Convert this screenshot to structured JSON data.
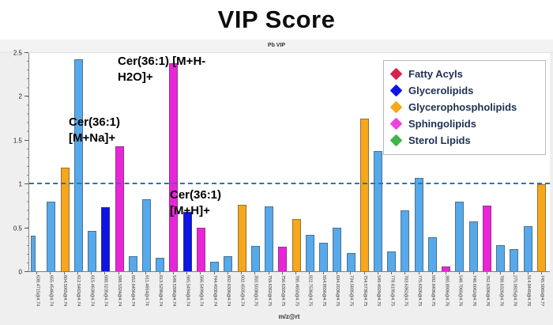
{
  "title": "VIP Score",
  "panel_header": "Pb VIP",
  "legend": {
    "items": [
      {
        "label": "Fatty Acyls",
        "color": "#d6224c"
      },
      {
        "label": "Glycerolipids",
        "color": "#0d14e4"
      },
      {
        "label": "Glycerophospholipids",
        "color": "#f6a71c"
      },
      {
        "label": "Sphingolipids",
        "color": "#ef42e0"
      },
      {
        "label": "Sterol Lipids",
        "color": "#3cb54a"
      }
    ]
  },
  "chart_data": {
    "type": "bar",
    "title": "Pb VIP",
    "xlabel": "m/z@rt",
    "ylabel": "",
    "ylim": [
      0,
      2.5
    ],
    "yticks": [
      "0",
      "0.5",
      "1",
      "1.5",
      "2",
      "2.5"
    ],
    "grid": false,
    "legend_position": "top-right",
    "threshold_line": {
      "value": 1.0,
      "style": "dashed",
      "color": "#2d74a4"
    },
    "category_colors": {
      "other": "#56a9ea",
      "fatty_acyls": "#d6224c",
      "glycerolipids": "#0d14e4",
      "glycerophospholipids": "#f6a71c",
      "sphingolipids": "#ea25d8",
      "sterol_lipids": "#3cb54a"
    },
    "bars": [
      {
        "label": "638.4715@4.74",
        "value": 0.41,
        "category": "other"
      },
      {
        "label": "655.4546@4.74",
        "value": 0.8,
        "category": "other"
      },
      {
        "label": "604.5065@4.74",
        "value": 1.19,
        "category": "glycerophospholipids"
      },
      {
        "label": "612.5463@4.74",
        "value": 2.43,
        "category": "other"
      },
      {
        "label": "615.4638@4.74",
        "value": 0.46,
        "category": "other"
      },
      {
        "label": "688.5235@4.74",
        "value": 0.73,
        "category": "glycerolipids"
      },
      {
        "label": "588.5324@4.74",
        "value": 1.43,
        "category": "sphingolipids"
      },
      {
        "label": "652.6456@4.74",
        "value": 0.17,
        "category": "other"
      },
      {
        "label": "611.4654@4.74",
        "value": 0.82,
        "category": "other"
      },
      {
        "label": "613.5296@4.74",
        "value": 0.15,
        "category": "other"
      },
      {
        "label": "548.5396@4.74",
        "value": 2.38,
        "category": "sphingolipids"
      },
      {
        "label": "565.5494@4.74",
        "value": 0.68,
        "category": "glycerolipids"
      },
      {
        "label": "566.5499@4.74",
        "value": 0.5,
        "category": "sphingolipids"
      },
      {
        "label": "744.4930@4.74",
        "value": 0.11,
        "category": "other"
      },
      {
        "label": "802.6306@4.74",
        "value": 0.17,
        "category": "other"
      },
      {
        "label": "602.4505@4.74",
        "value": 0.76,
        "category": "glycerophospholipids"
      },
      {
        "label": "350.5038@4.75",
        "value": 0.29,
        "category": "other"
      },
      {
        "label": "759.6362@4.75",
        "value": 0.74,
        "category": "other"
      },
      {
        "label": "756.6305@4.75",
        "value": 0.28,
        "category": "sphingolipids"
      },
      {
        "label": "780.4650@4.75",
        "value": 0.6,
        "category": "glycerophospholipids"
      },
      {
        "label": "822.7536@4.75",
        "value": 0.42,
        "category": "other"
      },
      {
        "label": "554.8556@4.75",
        "value": 0.33,
        "category": "other"
      },
      {
        "label": "694.2036@4.75",
        "value": 0.5,
        "category": "other"
      },
      {
        "label": "734.5695@4.75",
        "value": 0.21,
        "category": "other"
      },
      {
        "label": "754.5736@4.75",
        "value": 1.75,
        "category": "glycerophospholipids"
      },
      {
        "label": "549.4929@4.75",
        "value": 1.38,
        "category": "other"
      },
      {
        "label": "778.6195@4.75",
        "value": 0.23,
        "category": "other"
      },
      {
        "label": "783.6362@4.75",
        "value": 0.7,
        "category": "other"
      },
      {
        "label": "775.6326@4.75",
        "value": 1.07,
        "category": "other"
      },
      {
        "label": "592.8406@4.75",
        "value": 0.39,
        "category": "other"
      },
      {
        "label": "380.8906@4.76",
        "value": 0.05,
        "category": "sphingolipids"
      },
      {
        "label": "548.7060@4.76",
        "value": 0.8,
        "category": "other"
      },
      {
        "label": "746.6062@4.76",
        "value": 0.57,
        "category": "other"
      },
      {
        "label": "762.6306@4.76",
        "value": 0.75,
        "category": "sphingolipids"
      },
      {
        "label": "788.6326@4.76",
        "value": 0.3,
        "category": "other"
      },
      {
        "label": "275.0925@4.76",
        "value": 0.25,
        "category": "other"
      },
      {
        "label": "514.8440@4.76",
        "value": 0.52,
        "category": "other"
      },
      {
        "label": "745.5060@4.77",
        "value": 1.0,
        "category": "glycerophospholipids"
      }
    ],
    "annotations": [
      {
        "text": "Cer(36:1) [M+H-H2O]+",
        "lines": [
          "Cer(36:1) [M+H-",
          "H2O]+"
        ],
        "target_bar_index": 10
      },
      {
        "text": "Cer(36:1) [M+Na]+",
        "lines": [
          "Cer(36:1)",
          "[M+Na]+"
        ],
        "target_bar_index": 6
      },
      {
        "text": "Cer(36:1) [M+H]+",
        "lines": [
          "Cer(36:1)",
          "[M+H]+"
        ],
        "target_bar_index": 12
      }
    ]
  }
}
